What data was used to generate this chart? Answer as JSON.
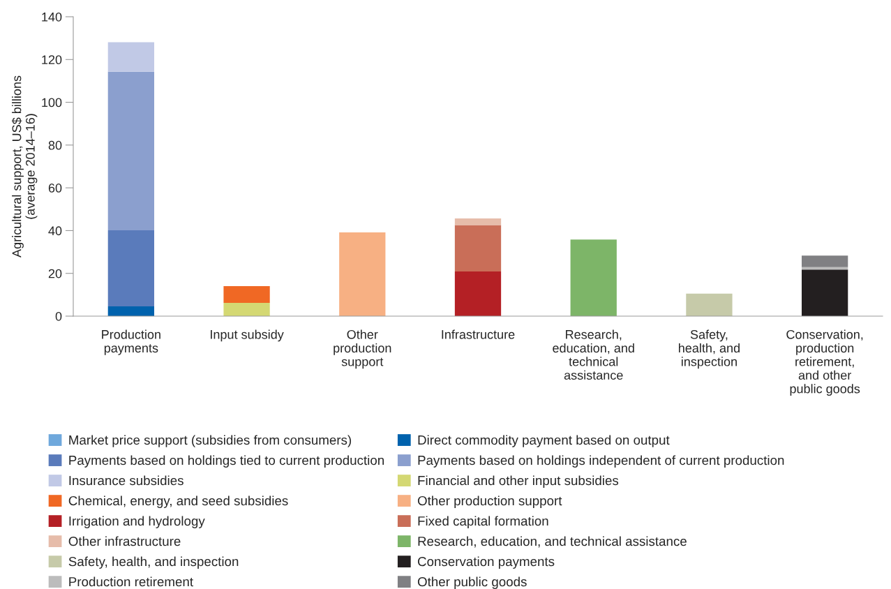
{
  "chart_data": {
    "type": "bar",
    "stacked": true,
    "ylabel": "Agricultural support, US$ billions (average 2014–16)",
    "categories": [
      "Production payments",
      "Input subsidy",
      "Other production support",
      "Infrastructure",
      "Research, education, and technical assistance",
      "Safety, health, and inspection",
      "Conservation, production retirement, and other public goods"
    ],
    "ylim": [
      0,
      140
    ],
    "yticks": [
      0,
      20,
      40,
      60,
      80,
      100,
      120,
      140
    ],
    "grid": false,
    "legend": "bottom",
    "series": [
      {
        "name": "Market price support (subsidies from consumers)",
        "color": "#6fa8dc",
        "values": [
          null,
          null,
          null,
          null,
          null,
          null,
          null
        ]
      },
      {
        "name": "Direct commodity payment based on output",
        "color": "#0062ad",
        "values": [
          4.6,
          null,
          null,
          null,
          null,
          null,
          null
        ]
      },
      {
        "name": "Payments based on holdings tied to current production",
        "color": "#5a7bbb",
        "values": [
          35.5,
          null,
          null,
          null,
          null,
          null,
          null
        ]
      },
      {
        "name": "Payments based on holdings independent of current production",
        "color": "#8b9fce",
        "values": [
          74.2,
          null,
          null,
          null,
          null,
          null,
          null
        ]
      },
      {
        "name": "Insurance subsidies",
        "color": "#c1c9e6",
        "values": [
          13.8,
          null,
          null,
          null,
          null,
          null,
          null
        ]
      },
      {
        "name": "Financial and other input subsidies",
        "color": "#d4d873",
        "values": [
          null,
          6.2,
          null,
          null,
          null,
          null,
          null
        ]
      },
      {
        "name": "Chemical, energy, and seed subsidies",
        "color": "#f06824",
        "values": [
          null,
          7.8,
          null,
          null,
          null,
          null,
          null
        ]
      },
      {
        "name": "Other production support",
        "color": "#f7b083",
        "values": [
          null,
          null,
          39.2,
          null,
          null,
          null,
          null
        ]
      },
      {
        "name": "Irrigation and hydrology",
        "color": "#b42025",
        "values": [
          null,
          null,
          null,
          20.9,
          null,
          null,
          null
        ]
      },
      {
        "name": "Fixed capital formation",
        "color": "#c96e58",
        "values": [
          null,
          null,
          null,
          21.7,
          null,
          null,
          null
        ]
      },
      {
        "name": "Other infrastructure",
        "color": "#e6bcaa",
        "values": [
          null,
          null,
          null,
          3.1,
          null,
          null,
          null
        ]
      },
      {
        "name": "Research, education, and technical assistance",
        "color": "#7db568",
        "values": [
          null,
          null,
          null,
          null,
          35.8,
          null,
          null
        ]
      },
      {
        "name": "Safety, health, and inspection",
        "color": "#c6caa9",
        "values": [
          null,
          null,
          null,
          null,
          null,
          10.5,
          null
        ]
      },
      {
        "name": "Conservation payments",
        "color": "#231f20",
        "values": [
          null,
          null,
          null,
          null,
          null,
          null,
          21.8
        ]
      },
      {
        "name": "Production retirement",
        "color": "#bcbcbc",
        "values": [
          null,
          null,
          null,
          null,
          null,
          null,
          1.1
        ]
      },
      {
        "name": "Other public goods",
        "color": "#808083",
        "values": [
          null,
          null,
          null,
          null,
          null,
          null,
          5.4
        ]
      }
    ]
  }
}
